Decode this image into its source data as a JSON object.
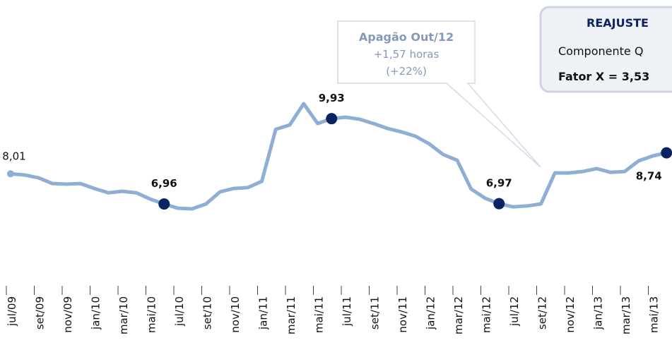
{
  "chart_data": {
    "type": "line",
    "categories": [
      "jul/09",
      null,
      "set/09",
      null,
      "nov/09",
      null,
      "jan/10",
      null,
      "mar/10",
      null,
      "mai/10",
      null,
      "jul/10",
      null,
      "set/10",
      null,
      "nov/10",
      null,
      "jan/11",
      null,
      "mar/11",
      null,
      "mai/11",
      null,
      "jul/11",
      null,
      "set/11",
      null,
      "nov/11",
      null,
      "jan/12",
      null,
      "mar/12",
      null,
      "mai/12",
      null,
      "jul/12",
      null,
      "set/12",
      null,
      "nov/12",
      null,
      "jan/13",
      null,
      "mar/13",
      null,
      "mai/13",
      null
    ],
    "series": [
      {
        "color": "#8eaed6",
        "values": [
          8.01,
          7.97,
          7.87,
          7.67,
          7.65,
          7.67,
          7.5,
          7.35,
          7.4,
          7.35,
          7.13,
          6.96,
          6.81,
          6.79,
          6.96,
          7.38,
          7.5,
          7.53,
          7.75,
          9.56,
          9.71,
          10.45,
          9.76,
          9.93,
          9.98,
          9.91,
          9.76,
          9.59,
          9.47,
          9.32,
          9.05,
          8.68,
          8.48,
          7.48,
          7.16,
          6.97,
          6.86,
          6.89,
          6.96,
          8.04,
          8.04,
          8.09,
          8.19,
          8.06,
          8.09,
          8.46,
          8.63,
          8.74
        ],
        "value_labels": [
          "8,01",
          null,
          null,
          null,
          null,
          null,
          null,
          null,
          null,
          null,
          null,
          "6,96",
          null,
          null,
          null,
          null,
          null,
          null,
          null,
          null,
          null,
          null,
          null,
          "9,93",
          null,
          null,
          null,
          null,
          null,
          null,
          null,
          null,
          null,
          null,
          null,
          "6,97",
          null,
          null,
          null,
          null,
          null,
          null,
          null,
          null,
          null,
          null,
          null,
          "8,74"
        ]
      }
    ],
    "annotation": {
      "title": "Apagão Out/12",
      "lines": [
        "+1,57 horas",
        "(+22%)"
      ]
    },
    "info_box": {
      "title": "REAJUSTE",
      "lines": [
        "Componente Q",
        "Fator X = 3,53"
      ]
    }
  }
}
